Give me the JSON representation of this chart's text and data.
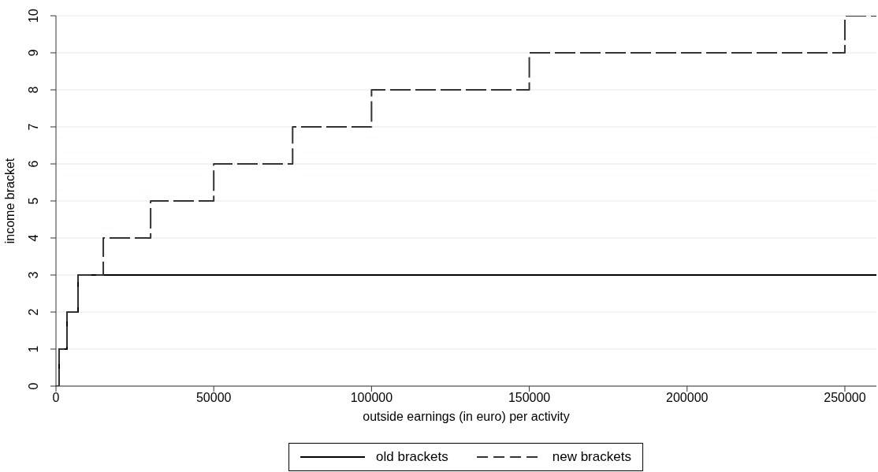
{
  "chart_data": {
    "type": "step",
    "xlabel": "outside earnings (in euro) per activity",
    "ylabel": "income bracket",
    "x": [
      0,
      1000,
      3500,
      7000,
      15000,
      30000,
      50000,
      75000,
      100000,
      150000,
      250000,
      260000
    ],
    "series": [
      {
        "name": "old brackets",
        "color": "#000000",
        "line_style": "solid",
        "values": [
          0,
          1,
          2,
          3,
          3,
          3,
          3,
          3,
          3,
          3,
          3,
          3
        ]
      },
      {
        "name": "new brackets",
        "color": "#333333",
        "line_style": "dashed",
        "values": [
          0,
          1,
          2,
          3,
          4,
          5,
          6,
          7,
          8,
          9,
          10,
          10
        ]
      }
    ],
    "xlim": [
      0,
      260000
    ],
    "ylim": [
      0,
      10
    ],
    "xticks": [
      0,
      50000,
      100000,
      150000,
      200000,
      250000
    ],
    "yticks": [
      0,
      1,
      2,
      3,
      4,
      5,
      6,
      7,
      8,
      9,
      10
    ],
    "grid": "y",
    "legend": "bottom"
  }
}
